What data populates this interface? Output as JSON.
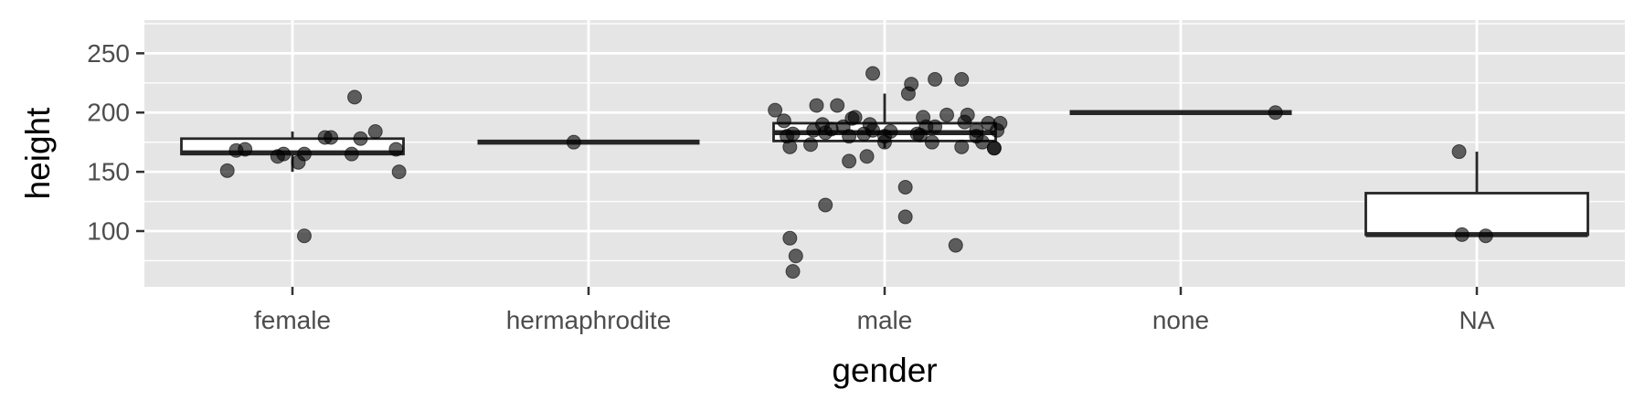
{
  "chart_data": {
    "type": "boxplot",
    "xlabel": "gender",
    "ylabel": "height",
    "categories": [
      "female",
      "hermaphrodite",
      "male",
      "none",
      "NA"
    ],
    "ylim": [
      53,
      278
    ],
    "yticks": [
      100,
      150,
      200,
      250
    ],
    "grid": true,
    "boxes": [
      {
        "category": "female",
        "lower_whisker": 150,
        "q1": 165,
        "median": 166,
        "q3": 178,
        "upper_whisker": 184
      },
      {
        "category": "hermaphrodite",
        "lower_whisker": 175,
        "q1": 175,
        "median": 175,
        "q3": 175,
        "upper_whisker": 175
      },
      {
        "category": "male",
        "lower_whisker": 170,
        "q1": 176,
        "median": 183,
        "q3": 191,
        "upper_whisker": 216
      },
      {
        "category": "none",
        "lower_whisker": 200,
        "q1": 200,
        "median": 200,
        "q3": 200,
        "upper_whisker": 200
      },
      {
        "category": "NA",
        "lower_whisker": 96,
        "q1": 97,
        "median": 97,
        "q3": 132,
        "upper_whisker": 167
      }
    ],
    "points": [
      {
        "category": "female",
        "values": [
          151,
          168,
          169,
          163,
          165,
          158,
          165,
          96,
          179,
          179,
          213,
          165,
          178,
          184,
          169,
          150
        ],
        "jitter": [
          -0.22,
          -0.19,
          -0.16,
          -0.05,
          -0.03,
          0.02,
          0.04,
          0.04,
          0.11,
          0.13,
          0.21,
          0.2,
          0.23,
          0.28,
          0.35,
          0.36
        ]
      },
      {
        "category": "hermaphrodite",
        "values": [
          175
        ],
        "jitter": [
          -0.05
        ]
      },
      {
        "category": "male",
        "values": [
          202,
          193,
          180,
          171,
          182,
          94,
          79,
          66,
          173,
          185,
          206,
          183,
          190,
          122,
          186,
          206,
          188,
          180,
          196,
          195,
          159,
          182,
          190,
          185,
          163,
          233,
          180,
          175,
          184,
          137,
          216,
          224,
          182,
          112,
          181,
          188,
          196,
          188,
          175,
          228,
          198,
          88,
          228,
          171,
          192,
          198,
          185,
          180,
          175,
          191,
          170,
          185,
          170,
          191
        ],
        "jitter": [
          -0.37,
          -0.34,
          -0.33,
          -0.32,
          -0.31,
          -0.32,
          -0.3,
          -0.31,
          -0.25,
          -0.24,
          -0.23,
          -0.2,
          -0.21,
          -0.2,
          -0.18,
          -0.16,
          -0.14,
          -0.12,
          -0.1,
          -0.11,
          -0.12,
          -0.07,
          -0.05,
          -0.04,
          -0.06,
          -0.04,
          0.0,
          0.0,
          0.02,
          0.07,
          0.08,
          0.09,
          0.11,
          0.07,
          0.12,
          0.14,
          0.13,
          0.17,
          0.16,
          0.17,
          0.21,
          0.24,
          0.26,
          0.26,
          0.27,
          0.28,
          0.31,
          0.31,
          0.33,
          0.35,
          0.37,
          0.38,
          0.37,
          0.39
        ]
      },
      {
        "category": "none",
        "values": [
          200
        ],
        "jitter": [
          0.32
        ]
      },
      {
        "category": "NA",
        "values": [
          167,
          97,
          96
        ],
        "jitter": [
          -0.06,
          -0.05,
          0.03
        ]
      }
    ],
    "colors": {
      "panel_bg": "#e5e5e5",
      "gridline": "#ffffff",
      "box_fill": "#ffffff",
      "box_line": "#262626",
      "point": "#000000"
    }
  }
}
